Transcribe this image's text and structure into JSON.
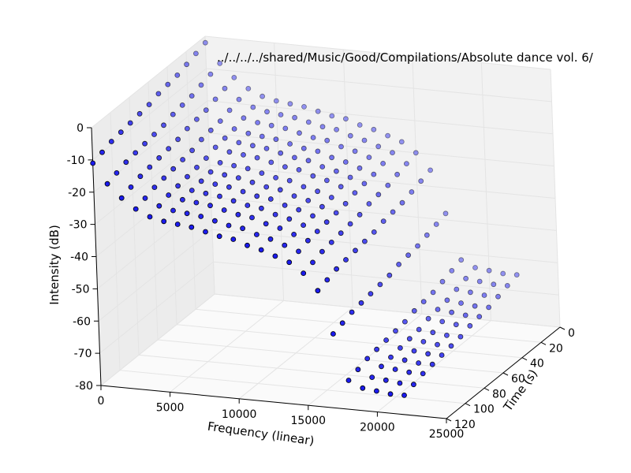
{
  "chart_data": {
    "type": "scatter",
    "projection": "3d",
    "title": "../../../../shared/Music/Good/Compilations/Absolute dance vol. 6/",
    "xlabel": "Frequency (linear)",
    "ylabel": "Time (s)",
    "zlabel": "Intensity (dB)",
    "xlim": [
      0,
      25000
    ],
    "ylim": [
      0,
      120
    ],
    "zlim": [
      -80,
      0
    ],
    "xticks": [
      "0",
      "5000",
      "10000",
      "15000",
      "20000",
      "25000"
    ],
    "yticks": [
      "0",
      "20",
      "40",
      "60",
      "80",
      "100",
      "120"
    ],
    "zticks": [
      "0",
      "-10",
      "-20",
      "-30",
      "-40",
      "-50",
      "-60",
      "-70",
      "-80"
    ],
    "grid": true,
    "legend": "none",
    "marker_color": "#1a1aee",
    "marker_edge": "#000000",
    "time_slices": [
      0,
      10,
      20,
      30,
      40,
      50,
      60,
      70,
      80,
      90,
      100,
      110,
      120
    ],
    "frequencies": [
      0,
      1000,
      2000,
      3000,
      4000,
      5000,
      6000,
      7000,
      8000,
      9000,
      10000,
      11000,
      12000,
      13000,
      14000,
      15000,
      16000,
      17000,
      18000,
      19000,
      20000,
      21000,
      22000
    ],
    "intensity_profile_db": [
      -2,
      -8,
      -12,
      -15,
      -17,
      -18,
      -18.5,
      -19,
      -20,
      -21,
      -21.5,
      -23,
      -24,
      -25.5,
      -27,
      -30,
      -35,
      -48,
      -62,
      -64,
      -64.5,
      -65,
      -65
    ],
    "slice_offsets_db": [
      0,
      -1,
      -2,
      -3,
      -3.5,
      -4,
      -5,
      -5.5,
      -6,
      -6.5,
      -7,
      -8,
      -9
    ]
  }
}
